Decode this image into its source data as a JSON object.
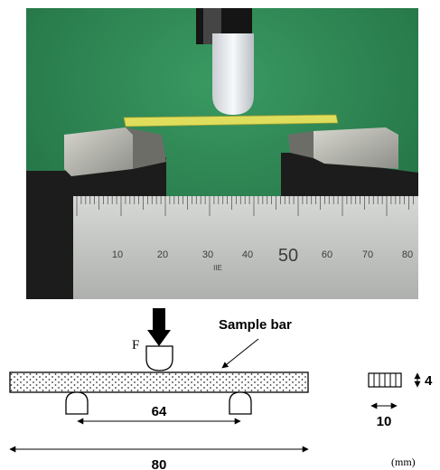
{
  "photo": {
    "ruler_scale": [
      "10",
      "20",
      "30",
      "40",
      "50",
      "60",
      "70",
      "80"
    ],
    "ruler_mark": "IIE"
  },
  "schematic": {
    "force_label": "F",
    "sample_label": "Sample bar",
    "span_value": "64",
    "length_value": "80",
    "width_value": "10",
    "thickness_value": "4",
    "unit_label": "(mm)"
  },
  "colors": {
    "background_green": "#2c7f4e",
    "sample_bar": "#dede5c",
    "ruler": "#c4c6c3",
    "base_block": "#1c1c1c",
    "support_metal": "#b8b8b0"
  }
}
